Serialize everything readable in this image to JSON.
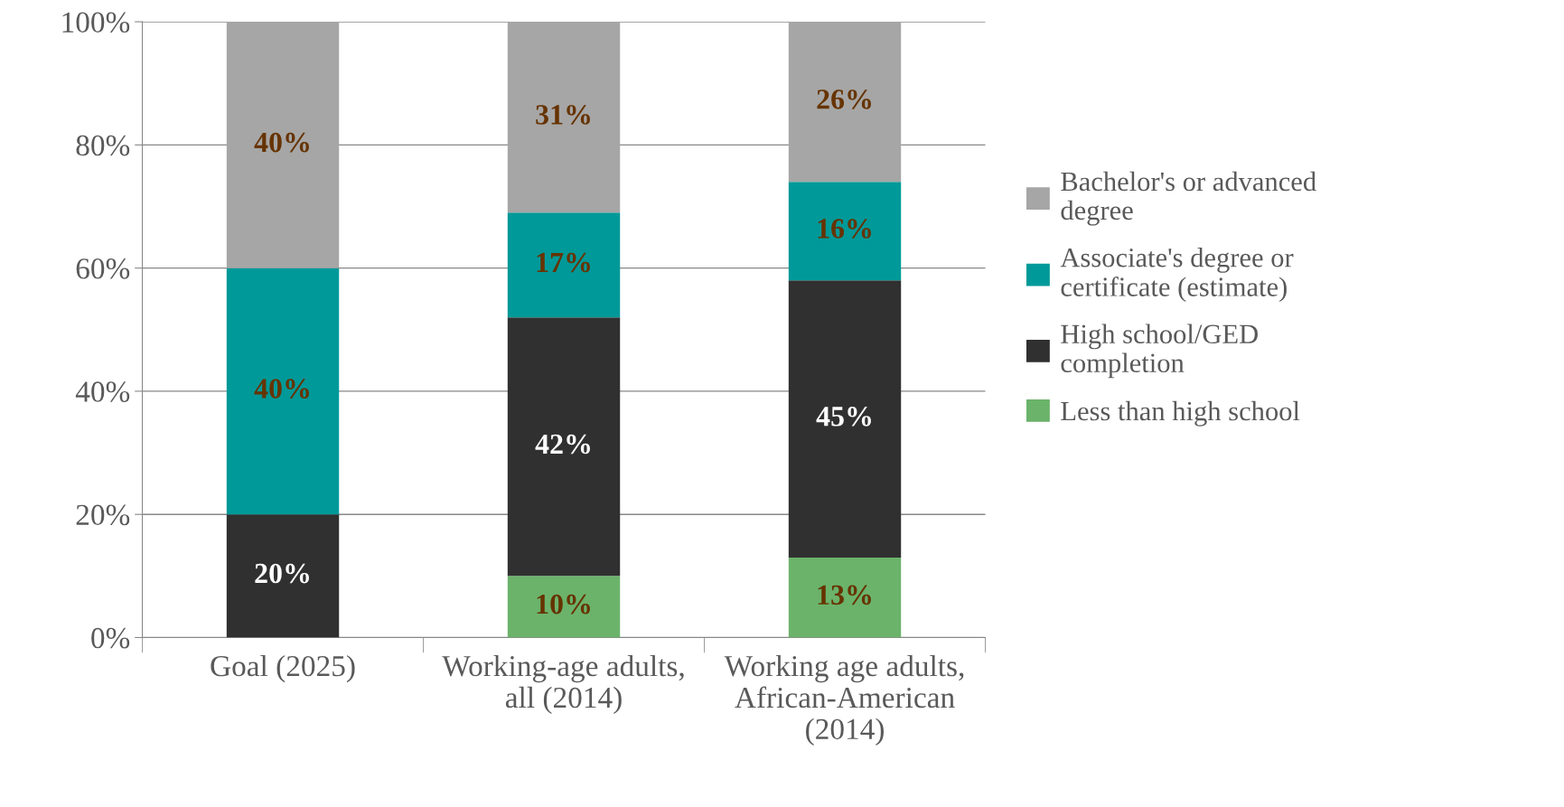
{
  "chart_data": {
    "type": "bar",
    "stacked": true,
    "categories": [
      "Goal (2025)",
      "Working-age adults, all (2014)",
      "Working age adults, African-American (2014)"
    ],
    "series": [
      {
        "name": "Less than high school",
        "color": "#6bb36b",
        "values": [
          0,
          10,
          13
        ],
        "value_labels": [
          null,
          "10%",
          "13%"
        ]
      },
      {
        "name": "High school/GED completion",
        "color": "#303030",
        "values": [
          20,
          42,
          45
        ],
        "value_labels": [
          "20%",
          "42%",
          "45%"
        ]
      },
      {
        "name": "Associate's degree or certificate (estimate)",
        "color": "#009999",
        "values": [
          40,
          17,
          16
        ],
        "value_labels": [
          "40%",
          "17%",
          "16%"
        ]
      },
      {
        "name": "Bachelor's or advanced degree",
        "color": "#a6a6a6",
        "values": [
          40,
          31,
          26
        ],
        "value_labels": [
          "40%",
          "31%",
          "26%"
        ]
      }
    ],
    "ylim": [
      0,
      100
    ],
    "yticks": [
      {
        "value": 0,
        "label": "0%"
      },
      {
        "value": 20,
        "label": "20%"
      },
      {
        "value": 40,
        "label": "40%"
      },
      {
        "value": 60,
        "label": "60%"
      },
      {
        "value": 80,
        "label": "80%"
      },
      {
        "value": 100,
        "label": "100%"
      }
    ],
    "grid": "y",
    "legend": "right"
  }
}
